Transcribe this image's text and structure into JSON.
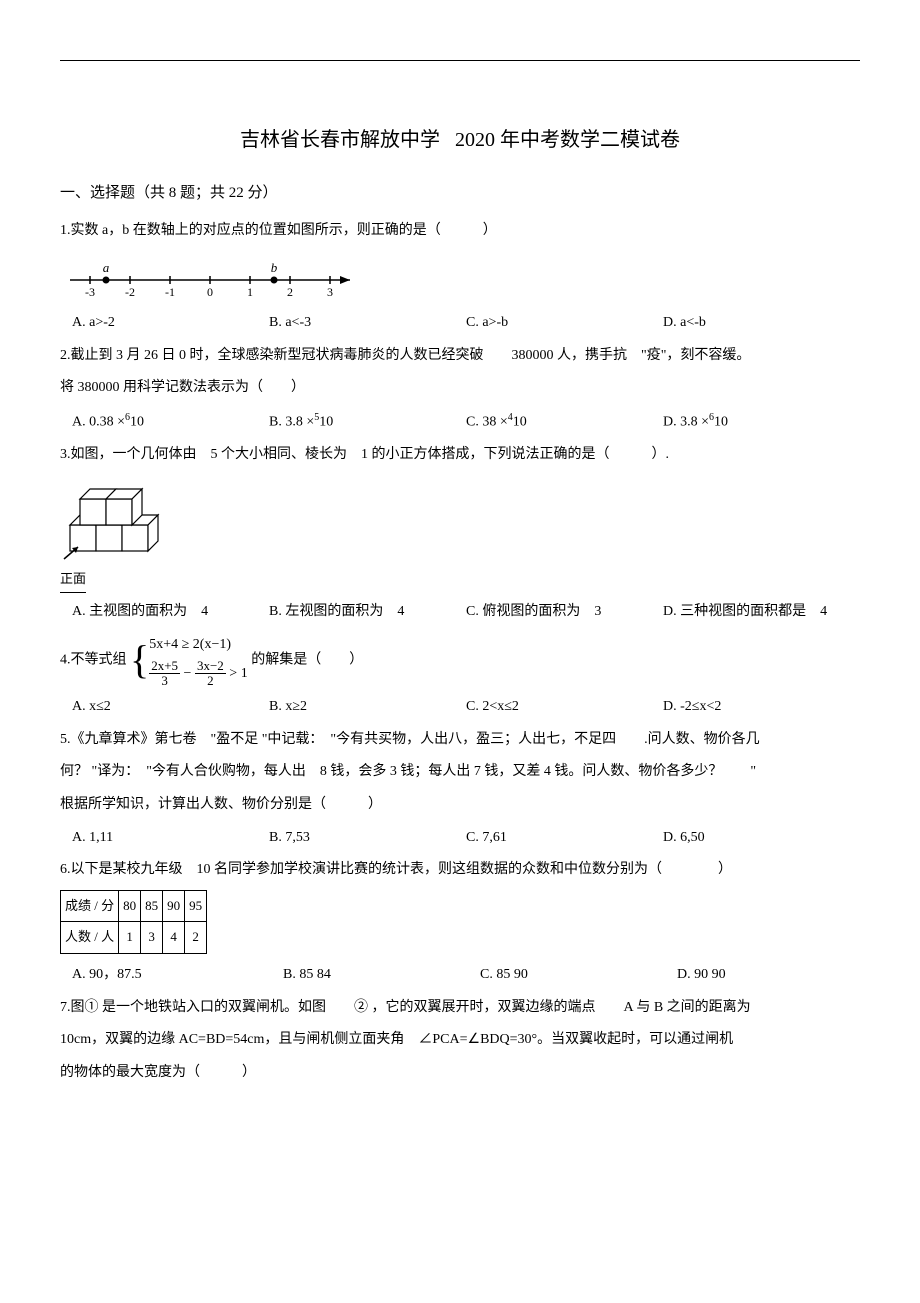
{
  "title_prefix": "吉林省长春市解放中学",
  "title_suffix": "2020 年中考数学二模试卷",
  "section1": "一、选择题（共   8 题；共  22 分）",
  "q1": {
    "text": "1.实数  a，b 在数轴上的对应点的位置如图所示，则正确的是（　　　）",
    "numberline": {
      "ticks": [
        "-3",
        "-2",
        "-1",
        "0",
        "1",
        "2",
        "3"
      ],
      "a_pos": -2.6,
      "b_pos": 1.6
    },
    "A": "A. a>-2",
    "B": "B. a<-3",
    "C": "C. a>-b",
    "D": "D. a<-b"
  },
  "q2": {
    "text1": "2.截止到  3 月 26 日 0 时，全球感染新型冠状病毒肺炎的人数已经突破　　380000 人，携手抗　\"疫\"，刻不容缓。",
    "text2": "将 380000 用科学记数法表示为（　　）",
    "A_pre": "A. 0.38   ×",
    "A_sup": "6",
    "A_post": "10",
    "B_pre": "B. 3.8   ×",
    "B_sup": "5",
    "B_post": "10",
    "C_pre": "C. 38   ×",
    "C_sup": "4",
    "C_post": "10",
    "D_pre": "D. 3.8   ×",
    "D_sup": "6",
    "D_post": "10"
  },
  "q3": {
    "text": "3.如图，一个几何体由　5 个大小相同、棱长为　1 的小正方体搭成，下列说法正确的是（　　　）.",
    "fig_label": "正面",
    "A": "A. 主视图的面积为　4",
    "B": "B. 左视图的面积为　4",
    "C": "C. 俯视图的面积为　3",
    "D": "D. 三种视图的面积都是　4"
  },
  "q4": {
    "text_prefix": "4.不等式组  ",
    "row1": "5x+4 ≥ 2(x−1)",
    "row2_f1_num": "2x+5",
    "row2_f1_den": "3",
    "row2_minus": " − ",
    "row2_f2_num": "3x−2",
    "row2_f2_den": "2",
    "row2_tail": " > 1",
    "text_suffix": "的解集是（　　）",
    "A": "A. x≤2",
    "B": "B. x≥2",
    "C": "C. 2<x≤2",
    "D": "D. -2≤x<2"
  },
  "q5": {
    "text1": "5.《九章算术》第七卷　\"盈不足  \"中记载：　\"今有共买物，人出八，盈三；人出七，不足四　　.问人数、物价各几",
    "text2": "何？ \"译为：　\"今有人合伙购物，每人出　8 钱，会多  3 钱；每人出  7 钱，又差  4 钱。问人数、物价各多少？　　\"",
    "text3": "根据所学知识，计算出人数、物价分别是（　　　）",
    "A": "A. 1,11",
    "B": "B. 7,53",
    "C": "C. 7,61",
    "D": "D. 6,50"
  },
  "q6": {
    "text": "6.以下是某校九年级　10 名同学参加学校演讲比赛的统计表，则这组数据的众数和中位数分别为（　　　　）",
    "table": {
      "r1": [
        "成绩 / 分",
        "80",
        "85",
        "90",
        "95"
      ],
      "r2": [
        "人数 / 人",
        "1",
        "3",
        "4",
        "2"
      ]
    },
    "A": "A. 90，87.5",
    "B": "　B. 85  84",
    "C": "　C. 85  90",
    "D": "　D. 90  90"
  },
  "q7": {
    "text1": "7.图① 是一个地铁站入口的双翼闸机。如图　　② ，它的双翼展开时，双翼边缘的端点　　A 与 B 之间的距离为",
    "text2": "10cm，双翼的边缘  AC=BD=54cm，且与闸机侧立面夹角　∠PCA=∠BDQ=30°。当双翼收起时，可以通过闸机",
    "text3": "的物体的最大宽度为（　　　）"
  }
}
